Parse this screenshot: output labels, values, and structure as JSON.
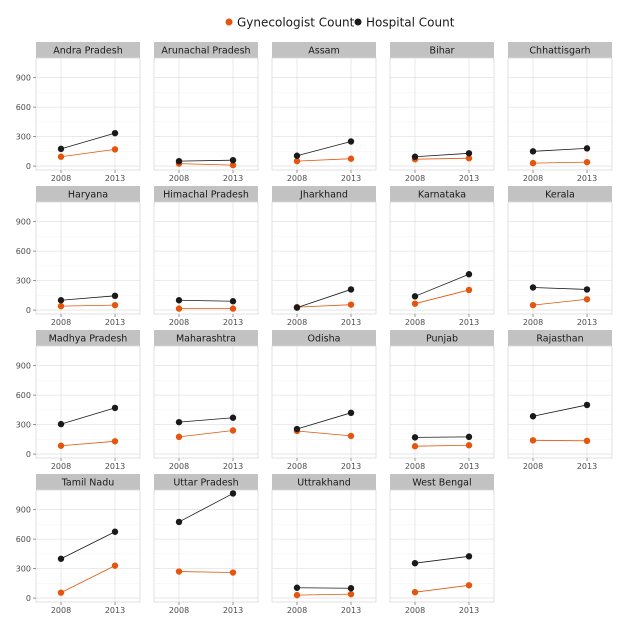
{
  "chart_data": {
    "type": "line",
    "facet_by": "state",
    "x": [
      "2008",
      "2013"
    ],
    "ylim": [
      -40,
      1100
    ],
    "yticks": [
      0,
      300,
      600,
      900
    ],
    "grid": true,
    "legend_position": "top",
    "series": [
      {
        "name": "Gynecologist Count",
        "color": "#e6550d"
      },
      {
        "name": "Hospital Count",
        "color": "#1a1a1a"
      }
    ],
    "panels": [
      {
        "state": "Andra Pradesh",
        "gynecologist": [
          95,
          170
        ],
        "hospital": [
          175,
          335
        ]
      },
      {
        "state": "Arunachal Pradesh",
        "gynecologist": [
          25,
          10
        ],
        "hospital": [
          50,
          60
        ]
      },
      {
        "state": "Assam",
        "gynecologist": [
          50,
          75
        ],
        "hospital": [
          105,
          250
        ]
      },
      {
        "state": "Bihar",
        "gynecologist": [
          70,
          80
        ],
        "hospital": [
          95,
          130
        ]
      },
      {
        "state": "Chhattisgarh",
        "gynecologist": [
          30,
          40
        ],
        "hospital": [
          150,
          180
        ]
      },
      {
        "state": "Haryana",
        "gynecologist": [
          40,
          50
        ],
        "hospital": [
          100,
          145
        ]
      },
      {
        "state": "Himachal Pradesh",
        "gynecologist": [
          15,
          15
        ],
        "hospital": [
          100,
          90
        ]
      },
      {
        "state": "Jharkhand",
        "gynecologist": [
          30,
          55
        ],
        "hospital": [
          25,
          210
        ]
      },
      {
        "state": "Karnataka",
        "gynecologist": [
          65,
          205
        ],
        "hospital": [
          140,
          365
        ]
      },
      {
        "state": "Kerala",
        "gynecologist": [
          50,
          110
        ],
        "hospital": [
          230,
          210
        ]
      },
      {
        "state": "Madhya Pradesh",
        "gynecologist": [
          85,
          130
        ],
        "hospital": [
          305,
          470
        ]
      },
      {
        "state": "Maharashtra",
        "gynecologist": [
          175,
          240
        ],
        "hospital": [
          325,
          370
        ]
      },
      {
        "state": "Odisha",
        "gynecologist": [
          235,
          185
        ],
        "hospital": [
          255,
          420
        ]
      },
      {
        "state": "Punjab",
        "gynecologist": [
          80,
          90
        ],
        "hospital": [
          170,
          175
        ]
      },
      {
        "state": "Rajasthan",
        "gynecologist": [
          140,
          135
        ],
        "hospital": [
          385,
          500
        ]
      },
      {
        "state": "Tamil Nadu",
        "gynecologist": [
          55,
          330
        ],
        "hospital": [
          400,
          675
        ]
      },
      {
        "state": "Uttar Pradesh",
        "gynecologist": [
          270,
          260
        ],
        "hospital": [
          775,
          1065
        ]
      },
      {
        "state": "Uttrakhand",
        "gynecologist": [
          30,
          40
        ],
        "hospital": [
          105,
          100
        ]
      },
      {
        "state": "West Bengal",
        "gynecologist": [
          60,
          130
        ],
        "hospital": [
          355,
          425
        ]
      }
    ]
  }
}
